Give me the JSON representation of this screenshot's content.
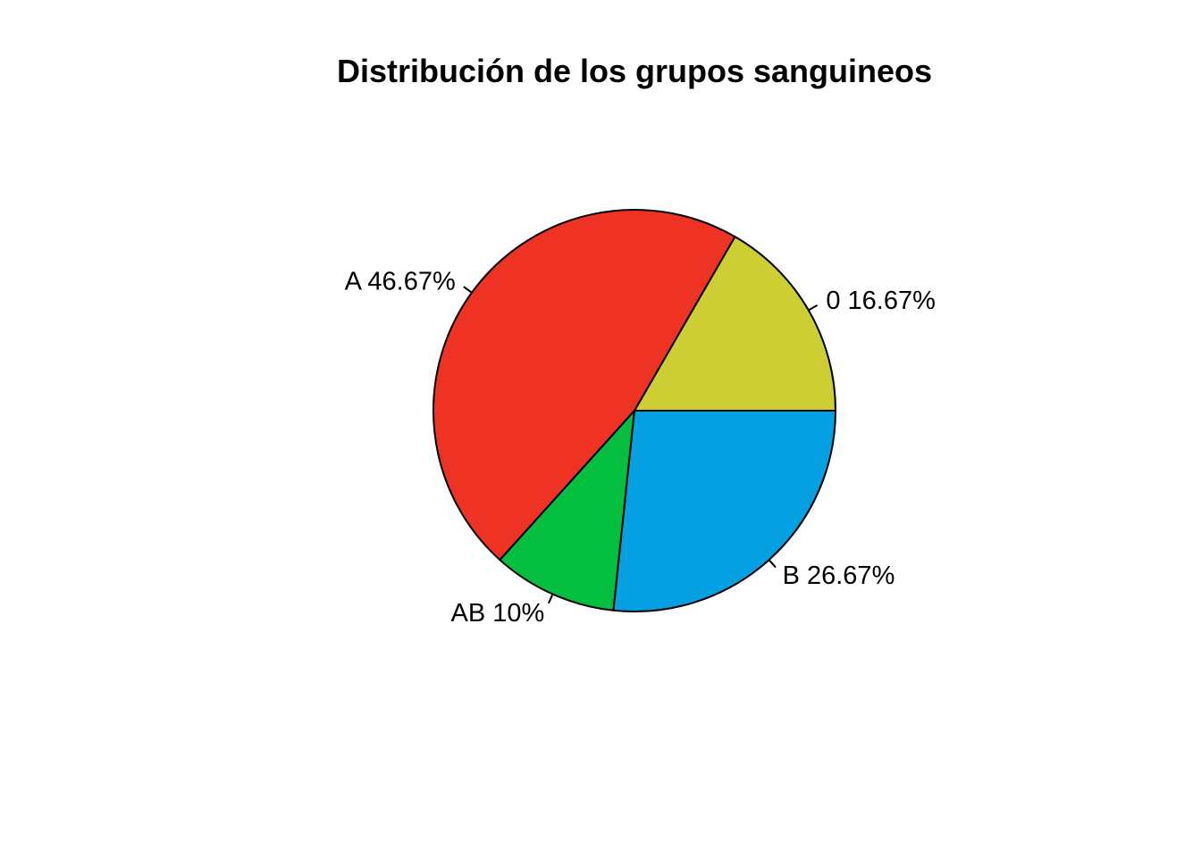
{
  "chart_data": {
    "type": "pie",
    "title": "Distribución de los grupos sanguineos",
    "categories": [
      "0",
      "A",
      "AB",
      "B"
    ],
    "values": [
      16.67,
      46.67,
      10,
      26.67
    ],
    "labels": [
      "0 16.67%",
      "A 46.67%",
      "AB 10%",
      "B 26.67%"
    ],
    "colors": [
      "#CDCE34",
      "#EE3224",
      "#04BE40",
      "#04A0E2"
    ],
    "start_angle_deg": 0,
    "direction": "counterclockwise"
  }
}
